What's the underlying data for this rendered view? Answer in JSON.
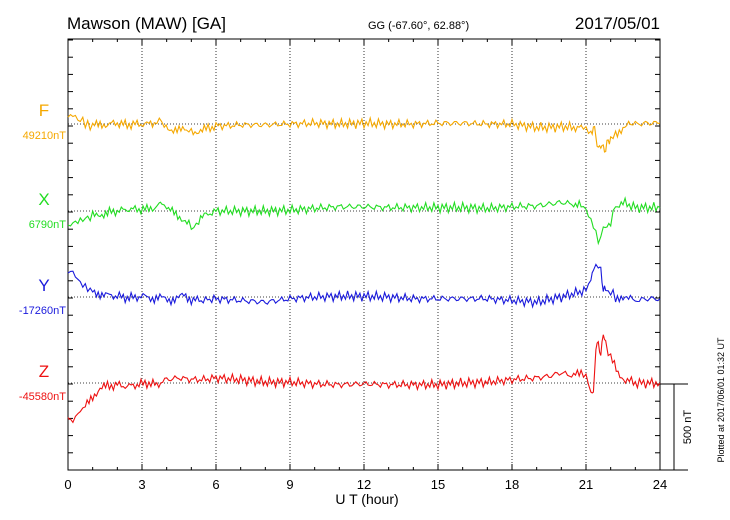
{
  "header": {
    "station": "Mawson (MAW)  [GA]",
    "coords": "GG (-67.60°,  62.88°)",
    "date": "2017/05/01"
  },
  "footer": {
    "plotted": "Plotted at 2017/06/01 01:32 UT"
  },
  "chart_data": {
    "type": "line",
    "title": "Mawson (MAW)  [GA]",
    "xlabel": "U T (hour)",
    "xlim": [
      0,
      24
    ],
    "x_ticks": [
      "0",
      "3",
      "6",
      "9",
      "12",
      "15",
      "18",
      "21",
      "24"
    ],
    "scale_bar_label": "500 nT",
    "scale_bar_nT": 500,
    "grid": true,
    "series": [
      {
        "name": "F",
        "baseline_label": "49210nT",
        "color": "#f5a800",
        "x": [
          0,
          0.2,
          0.4,
          0.6,
          0.8,
          1.0,
          1.3,
          1.6,
          2.0,
          2.4,
          2.8,
          3.2,
          3.5,
          3.7,
          3.9,
          4.2,
          4.5,
          4.8,
          5.0,
          5.3,
          5.6,
          6.0,
          6.5,
          7,
          8,
          9,
          10,
          11,
          12,
          13,
          14,
          15,
          16,
          17,
          18,
          19,
          19.5,
          20,
          20.5,
          20.8,
          21.0,
          21.2,
          21.3,
          21.4,
          21.5,
          21.6,
          21.7,
          21.8,
          21.9,
          22.0,
          22.2,
          22.5,
          22.8,
          23.0,
          23.5,
          24.0
        ],
        "y": [
          40,
          55,
          25,
          20,
          -10,
          -10,
          -5,
          0,
          5,
          -5,
          0,
          0,
          -5,
          30,
          -10,
          -30,
          -40,
          -30,
          -45,
          -40,
          -30,
          -10,
          -10,
          -5,
          -5,
          0,
          5,
          0,
          5,
          0,
          0,
          5,
          5,
          0,
          0,
          -20,
          -20,
          -15,
          -20,
          -10,
          -30,
          -50,
          -20,
          -60,
          -160,
          -110,
          -150,
          -140,
          -100,
          -80,
          -60,
          -20,
          0,
          0,
          5,
          5
        ]
      },
      {
        "name": "X",
        "baseline_label": "6790nT",
        "color": "#22dd22",
        "x": [
          0,
          0.2,
          0.4,
          0.6,
          0.8,
          1.0,
          1.3,
          1.6,
          2.0,
          2.4,
          2.8,
          3.2,
          3.5,
          3.7,
          3.8,
          4.0,
          4.3,
          4.6,
          4.9,
          5.1,
          5.3,
          5.6,
          6.0,
          7,
          8,
          9,
          10,
          11,
          12,
          13,
          14,
          15,
          16,
          17,
          18,
          19,
          19.5,
          20,
          20.5,
          20.8,
          21.0,
          21.2,
          21.3,
          21.5,
          21.7,
          22.0,
          22.2,
          22.5,
          23.0,
          23.5,
          24.0
        ],
        "y": [
          -90,
          -70,
          -60,
          -50,
          -40,
          -30,
          -20,
          -10,
          0,
          10,
          10,
          10,
          20,
          40,
          50,
          10,
          -10,
          -40,
          -80,
          -100,
          -60,
          -20,
          0,
          0,
          0,
          5,
          15,
          25,
          25,
          20,
          20,
          20,
          20,
          15,
          25,
          30,
          40,
          50,
          40,
          30,
          10,
          -60,
          -80,
          -180,
          -110,
          -60,
          30,
          50,
          20,
          20,
          20
        ]
      },
      {
        "name": "Y",
        "baseline_label": "-17260nT",
        "color": "#1a1adc",
        "x": [
          0,
          0.2,
          0.4,
          0.6,
          0.8,
          1.0,
          1.3,
          1.6,
          2.0,
          2.4,
          2.8,
          3.2,
          3.5,
          3.8,
          4.1,
          4.4,
          4.7,
          5.0,
          5.4,
          6.0,
          7,
          8,
          9,
          10,
          11,
          12,
          13,
          14,
          15,
          16,
          17,
          18,
          19,
          20,
          20.5,
          21.0,
          21.2,
          21.3,
          21.5,
          21.6,
          21.7,
          21.8,
          22.0,
          22.2,
          22.5,
          22.8,
          23.0,
          23.5,
          24.0
        ],
        "y": [
          150,
          145,
          100,
          70,
          50,
          30,
          20,
          10,
          5,
          -5,
          0,
          5,
          -10,
          -5,
          -15,
          -10,
          10,
          -15,
          -20,
          -10,
          -20,
          -30,
          -10,
          0,
          5,
          5,
          0,
          -10,
          -10,
          -10,
          -10,
          -20,
          -30,
          0,
          20,
          40,
          100,
          160,
          190,
          150,
          50,
          30,
          30,
          0,
          -20,
          0,
          -20,
          -10,
          -10
        ]
      },
      {
        "name": "Z",
        "baseline_label": "-45580nT",
        "color": "#ee1111",
        "x": [
          0,
          0.1,
          0.3,
          0.5,
          0.7,
          1.0,
          1.3,
          1.6,
          2.0,
          2.4,
          2.8,
          3.2,
          3.6,
          4.0,
          4.5,
          5.0,
          5.5,
          6.0,
          7,
          8,
          9,
          10,
          11,
          12,
          13,
          14,
          15,
          16,
          17,
          18,
          19,
          19.5,
          20,
          20.5,
          20.8,
          21.0,
          21.2,
          21.3,
          21.4,
          21.5,
          21.6,
          21.7,
          21.8,
          22.0,
          22.3,
          22.6,
          23.0,
          23.5,
          24.0
        ],
        "y": [
          -180,
          -230,
          -200,
          -160,
          -140,
          -80,
          -30,
          -20,
          -10,
          -20,
          -10,
          0,
          -10,
          20,
          30,
          20,
          20,
          30,
          20,
          5,
          5,
          -5,
          -10,
          -5,
          -10,
          -10,
          -10,
          0,
          5,
          20,
          30,
          40,
          60,
          40,
          60,
          40,
          -50,
          -60,
          200,
          240,
          150,
          300,
          220,
          150,
          50,
          20,
          0,
          0,
          0
        ]
      }
    ]
  }
}
